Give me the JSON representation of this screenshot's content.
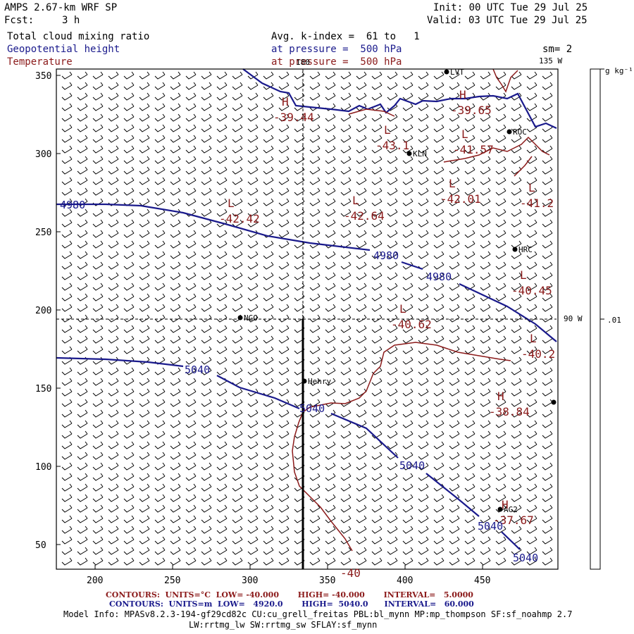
{
  "header": {
    "model": "AMPS 2.67-km WRF SP",
    "fcst_label": "Fcst:",
    "fcst_value": "3 h",
    "init": "Init: 00 UTC Tue 29 Jul 25",
    "valid": "Valid: 03 UTC Tue 29 Jul 25",
    "field1": "Total cloud mixing ratio",
    "field2": "Geopotential height",
    "field3": "Temperature",
    "avg": "Avg. k-index =  61 to   1",
    "pressure1": "at pressure =  500 hPa",
    "pressure2": "at pressure =  500 hPa",
    "sm": "sm= 2"
  },
  "colorbar": {
    "units": "g kg⁻¹",
    "value": ".01"
  },
  "map": {
    "lon_labels": {
      "top": "180",
      "top_right": "135 W",
      "right": "90 W"
    },
    "x_ticks": [
      "200",
      "250",
      "300",
      "350",
      "400",
      "450"
    ],
    "y_ticks": [
      "350",
      "300",
      "250",
      "200",
      "150",
      "100",
      "50"
    ],
    "stations": [
      {
        "name": "LVT"
      },
      {
        "name": "ROC"
      },
      {
        "name": "KLN"
      },
      {
        "name": "HRC"
      },
      {
        "name": "NGO"
      },
      {
        "name": "Henry"
      },
      {
        "name": "AG2"
      }
    ],
    "temperature_labels": [
      {
        "sym": "H",
        "val": "-39.44"
      },
      {
        "sym": "H",
        "val": "-39.65"
      },
      {
        "sym": "L",
        "val": "-43.1"
      },
      {
        "sym": "L",
        "val": "-41.57"
      },
      {
        "sym": "L",
        "val": "-42.01"
      },
      {
        "sym": "L",
        "val": "-41.2"
      },
      {
        "sym": "L",
        "val": "-42.42"
      },
      {
        "sym": "L",
        "val": "-42.64"
      },
      {
        "sym": "L",
        "val": "-40.45"
      },
      {
        "sym": "L",
        "val": "-40.62"
      },
      {
        "sym": "L",
        "val": "-40.2"
      },
      {
        "sym": "H",
        "val": "-38.84"
      },
      {
        "sym": "H",
        "val": "-37.67"
      },
      {
        "sym": "",
        "val": "-40"
      }
    ],
    "height_labels": [
      "4980",
      "4980",
      "4980",
      "5040",
      "5040",
      "5040",
      "5040",
      "5040"
    ]
  },
  "footer": {
    "contours_temp": "CONTOURS:  UNITS=°C  LOW= -40.000       HIGH= -40.000       INTERVAL=   5.0000",
    "contours_height": "CONTOURS:  UNITS=m  LOW=   4920.0       HIGH=  5040.0      INTERVAL=   60.000",
    "model_info_1": "Model Info: MPASv8.2.3-194-gf29cd82c CU:cu_grell_freitas PBL:bl_mynn MP:mp_thompson SF:sf_noahmp 2.7",
    "model_info_2": "LW:rrtmg_lw SW:rrtmg_sw SFLAY:sf_mynn"
  },
  "colors": {
    "height": "#1a1a8c",
    "temperature": "#8b1a1a",
    "barbs": "#000000"
  }
}
